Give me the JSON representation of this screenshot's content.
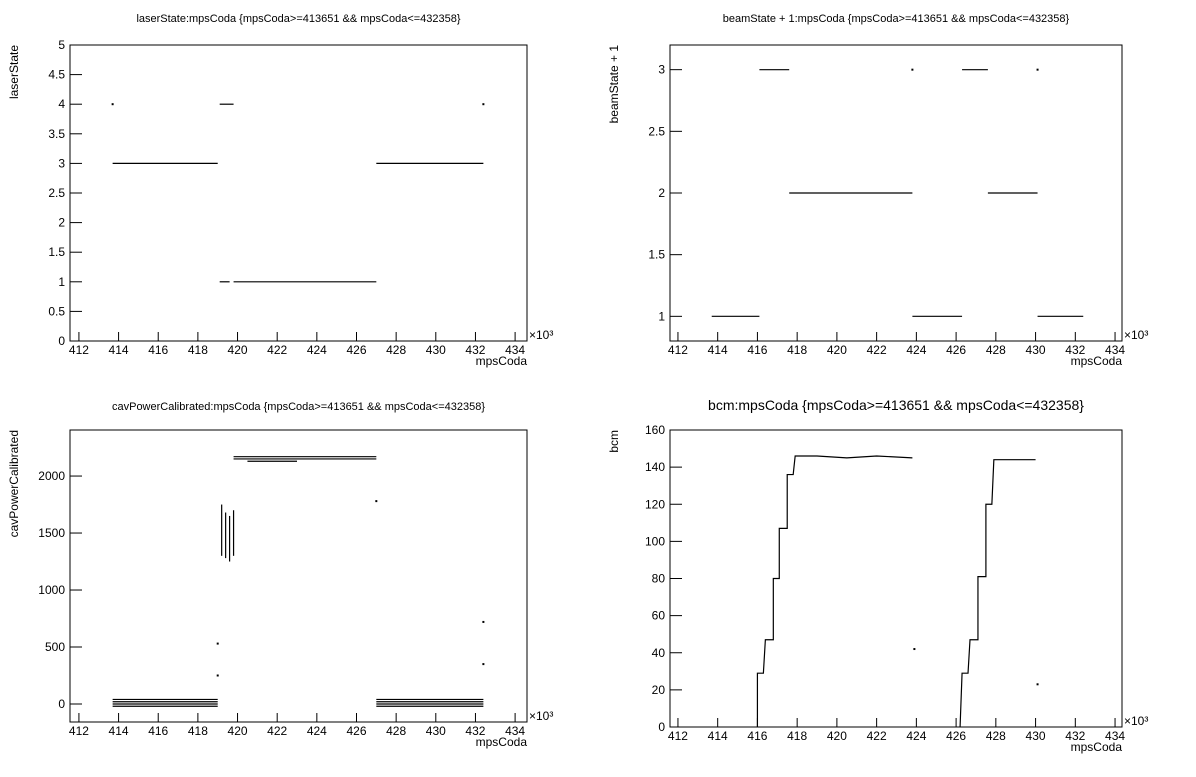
{
  "chart_data": [
    {
      "type": "line",
      "title": "laserState:mpsCoda {mpsCoda>=413651 && mpsCoda<=432358}",
      "x_label": "mpsCoda",
      "y_label": "laserState",
      "x_multiplier": "×10³",
      "color": "#000000",
      "xlim": [
        411.55,
        434.6
      ],
      "xticks": [
        412,
        414,
        416,
        418,
        420,
        422,
        424,
        426,
        428,
        430,
        432,
        434
      ],
      "ylim": [
        0,
        5
      ],
      "yticks": [
        0,
        0.5,
        1,
        1.5,
        2,
        2.5,
        3,
        3.5,
        4,
        4.5,
        5
      ],
      "x": [
        413.7,
        null,
        413.7,
        419.0,
        null,
        419.1,
        419.8,
        null,
        419.1,
        419.6,
        null,
        419.8,
        427.0,
        null,
        427.0,
        432.4,
        null,
        432.4
      ],
      "values": [
        4,
        null,
        3,
        3,
        null,
        4,
        4,
        null,
        1,
        1,
        null,
        1,
        1,
        null,
        3,
        3,
        null,
        4
      ]
    },
    {
      "type": "line",
      "title": "beamState + 1:mpsCoda {mpsCoda>=413651 && mpsCoda<=432358}",
      "x_label": "mpsCoda",
      "y_label": "beamState + 1",
      "x_multiplier": "×10³",
      "color": "#000000",
      "xlim": [
        411.6,
        434.35
      ],
      "xticks": [
        412,
        414,
        416,
        418,
        420,
        422,
        424,
        426,
        428,
        430,
        432,
        434
      ],
      "ylim": [
        0.8,
        3.2
      ],
      "yticks": [
        1,
        1.5,
        2,
        2.5,
        3
      ],
      "x": [
        413.7,
        416.1,
        null,
        416.1,
        417.6,
        null,
        417.6,
        423.8,
        null,
        423.8,
        null,
        423.8,
        426.3,
        null,
        426.3,
        427.6,
        null,
        427.6,
        430.1,
        null,
        430.1,
        null,
        430.1,
        432.4
      ],
      "values": [
        1,
        1,
        null,
        3,
        3,
        null,
        2,
        2,
        null,
        3,
        null,
        1,
        1,
        null,
        3,
        3,
        null,
        2,
        2,
        null,
        3,
        null,
        1,
        1
      ]
    },
    {
      "type": "line",
      "title": "cavPowerCalibrated:mpsCoda {mpsCoda>=413651 && mpsCoda<=432358}",
      "x_label": "mpsCoda",
      "y_label": "cavPowerCalibrated",
      "x_multiplier": "×10³",
      "color": "#000000",
      "xlim": [
        411.55,
        434.6
      ],
      "xticks": [
        412,
        414,
        416,
        418,
        420,
        422,
        424,
        426,
        428,
        430,
        432,
        434
      ],
      "ylim": [
        -158,
        2404
      ],
      "yticks": [
        0,
        500,
        1000,
        1500,
        2000
      ],
      "x": [
        413.7,
        419.0,
        null,
        413.7,
        419.0,
        null,
        413.7,
        419.0,
        null,
        413.7,
        419.0,
        null,
        419.0,
        null,
        419.0,
        null,
        419.2,
        419.2,
        null,
        419.4,
        419.4,
        null,
        419.6,
        419.6,
        null,
        419.8,
        419.8,
        null,
        419.8,
        427.0,
        null,
        419.8,
        427.0,
        null,
        420.5,
        423.0,
        null,
        427.0,
        null,
        427.0,
        432.4,
        null,
        427.0,
        432.4,
        null,
        427.0,
        432.4,
        null,
        427.0,
        432.4,
        null,
        432.4,
        null,
        432.4
      ],
      "values": [
        40,
        40,
        null,
        20,
        20,
        null,
        0,
        0,
        null,
        -20,
        -20,
        null,
        250,
        null,
        530,
        null,
        1300,
        1750,
        null,
        1280,
        1680,
        null,
        1250,
        1650,
        null,
        1300,
        1700,
        null,
        2170,
        2170,
        null,
        2150,
        2150,
        null,
        2130,
        2130,
        null,
        1780,
        null,
        40,
        40,
        null,
        20,
        20,
        null,
        0,
        0,
        null,
        -20,
        -20,
        null,
        720,
        null,
        350
      ]
    },
    {
      "type": "line",
      "title": "bcm:mpsCoda {mpsCoda>=413651 && mpsCoda<=432358}",
      "x_label": "mpsCoda",
      "y_label": "bcm",
      "x_multiplier": "×10³",
      "color": "#000000",
      "xlim": [
        411.6,
        434.35
      ],
      "xticks": [
        412,
        414,
        416,
        418,
        420,
        422,
        424,
        426,
        428,
        430,
        432,
        434
      ],
      "ylim": [
        0,
        160
      ],
      "yticks": [
        0,
        20,
        40,
        60,
        80,
        100,
        120,
        140,
        160
      ],
      "x": [
        416.0,
        416.0,
        416.3,
        416.4,
        416.8,
        416.8,
        417.1,
        417.1,
        417.5,
        417.5,
        417.8,
        417.9,
        419.0,
        420.5,
        422.0,
        423.8,
        null,
        423.9,
        null,
        426.2,
        426.3,
        426.6,
        426.7,
        427.1,
        427.1,
        427.5,
        427.5,
        427.8,
        427.9,
        429.0,
        430.0,
        null,
        430.1
      ],
      "values": [
        0,
        29,
        29,
        47,
        47,
        80,
        80,
        107,
        107,
        136,
        136,
        146,
        146,
        145,
        146,
        145,
        null,
        42,
        null,
        0,
        29,
        29,
        47,
        47,
        81,
        81,
        120,
        120,
        144,
        144,
        144,
        null,
        23
      ]
    }
  ]
}
